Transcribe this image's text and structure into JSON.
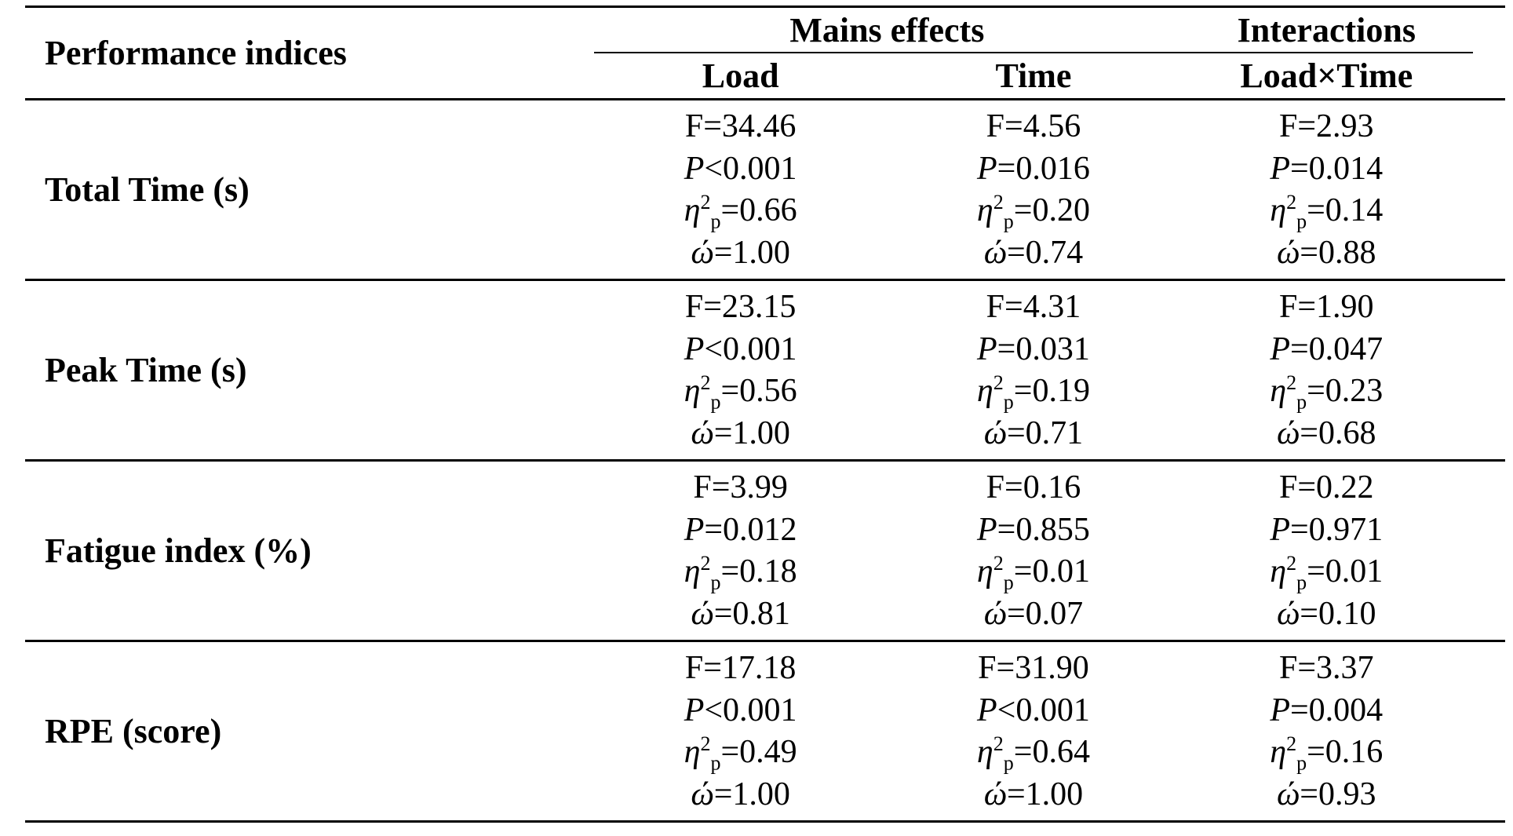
{
  "table": {
    "header": {
      "col1": "Performance indices",
      "group_main": "Mains effects",
      "group_interaction": "Interactions",
      "sub_cols": [
        "Load",
        "Time",
        "Load×Time"
      ]
    },
    "symbols": {
      "p": "P",
      "eta": "η",
      "eta_sup": "2",
      "eta_sub": "p",
      "omega": "ώ"
    },
    "rows": [
      {
        "label": "Total Time (s)",
        "cells": [
          {
            "f": "F=34.46",
            "p": "<0.001",
            "eta": "=0.66",
            "omega": "=1.00"
          },
          {
            "f": "F=4.56",
            "p": "=0.016",
            "eta": "=0.20",
            "omega": "=0.74"
          },
          {
            "f": "F=2.93",
            "p": "=0.014",
            "eta": "=0.14",
            "omega": "=0.88"
          }
        ]
      },
      {
        "label": "Peak Time (s)",
        "cells": [
          {
            "f": "F=23.15",
            "p": "<0.001",
            "eta": "=0.56",
            "omega": "=1.00"
          },
          {
            "f": "F=4.31",
            "p": "=0.031",
            "eta": "=0.19",
            "omega": "=0.71"
          },
          {
            "f": "F=1.90",
            "p": "=0.047",
            "eta": "=0.23",
            "omega": "=0.68"
          }
        ]
      },
      {
        "label": "Fatigue index (%)",
        "cells": [
          {
            "f": "F=3.99",
            "p": "=0.012",
            "eta": "=0.18",
            "omega": "=0.81"
          },
          {
            "f": "F=0.16",
            "p": "=0.855",
            "eta": "=0.01",
            "omega": "=0.07"
          },
          {
            "f": "F=0.22",
            "p": "=0.971",
            "eta": "=0.01",
            "omega": "=0.10"
          }
        ]
      },
      {
        "label": "RPE (score)",
        "cells": [
          {
            "f": "F=17.18",
            "p": "<0.001",
            "eta": "=0.49",
            "omega": "=1.00"
          },
          {
            "f": "F=31.90",
            "p": "<0.001",
            "eta": "=0.64",
            "omega": "=1.00"
          },
          {
            "f": "F=3.37",
            "p": "=0.004",
            "eta": "=0.16",
            "omega": "=0.93"
          }
        ]
      }
    ]
  }
}
